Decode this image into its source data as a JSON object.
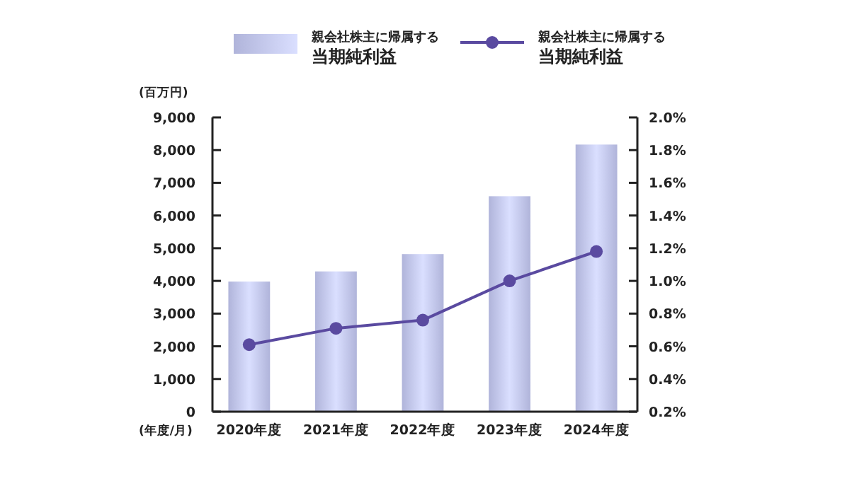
{
  "chart_data": {
    "type": "bar",
    "xlabel": "(年度/月)",
    "ylabel": "(百万円)",
    "categories": [
      "2020年度",
      "2021年度",
      "2022年度",
      "2023年度",
      "2024年度"
    ],
    "series": [
      {
        "name": "親会社株主に帰属する当期純利益",
        "color": "#b0b4da",
        "values": [
          3980,
          4290,
          4820,
          6590,
          8170
        ]
      },
      {
        "name": "親会社株主に帰属する当期純利益",
        "type": "line",
        "axis": "y2",
        "color": "#5a4aa0",
        "values": [
          0.61,
          0.71,
          0.76,
          1.0,
          1.18
        ]
      }
    ],
    "ylim": [
      0,
      9000
    ],
    "yticks": [
      {
        "value": 0,
        "label": "0"
      },
      {
        "value": 1000,
        "label": "1,000"
      },
      {
        "value": 2000,
        "label": "2,000"
      },
      {
        "value": 3000,
        "label": "3,000"
      },
      {
        "value": 4000,
        "label": "4,000"
      },
      {
        "value": 5000,
        "label": "5,000"
      },
      {
        "value": 6000,
        "label": "6,000"
      },
      {
        "value": 7000,
        "label": "7,000"
      },
      {
        "value": 8000,
        "label": "8,000"
      },
      {
        "value": 9000,
        "label": "9,000"
      }
    ],
    "y2lim": [
      0.2,
      2.0
    ],
    "y2ticks": [
      {
        "value": 0.2,
        "label": "0.2%"
      },
      {
        "value": 0.4,
        "label": "0.4%"
      },
      {
        "value": 0.6,
        "label": "0.6%"
      },
      {
        "value": 0.8,
        "label": "0.8%"
      },
      {
        "value": 1.0,
        "label": "1.0%"
      },
      {
        "value": 1.2,
        "label": "1.2%"
      },
      {
        "value": 1.4,
        "label": "1.4%"
      },
      {
        "value": 1.6,
        "label": "1.6%"
      },
      {
        "value": 1.8,
        "label": "1.8%"
      },
      {
        "value": 2.0,
        "label": "2.0%"
      }
    ],
    "legend": "top",
    "marker": "circle",
    "grid": false
  }
}
